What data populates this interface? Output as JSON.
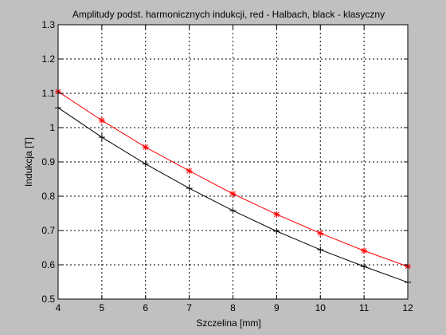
{
  "chart_data": {
    "type": "line",
    "title": "Amplitudy podst. harmonicznych indukcji, red - Halbach, black - klasyczny",
    "xlabel": "Szczelina [mm]",
    "ylabel": "Indukcja [T]",
    "xlim": [
      4,
      12
    ],
    "ylim": [
      0.5,
      1.3
    ],
    "xticks": [
      "4",
      "5",
      "6",
      "7",
      "8",
      "9",
      "10",
      "11",
      "12"
    ],
    "yticks": [
      "0.5",
      "0.6",
      "0.7",
      "0.8",
      "0.9",
      "1",
      "1.1",
      "1.2",
      "1.3"
    ],
    "grid": true,
    "x": [
      4,
      5,
      6,
      7,
      8,
      9,
      10,
      11,
      12
    ],
    "series": [
      {
        "color": "#ff0000",
        "marker": "star",
        "values": [
          1.105,
          1.021,
          0.943,
          0.874,
          0.807,
          0.747,
          0.692,
          0.641,
          0.595
        ]
      },
      {
        "color": "#000000",
        "marker": "plus",
        "values": [
          1.058,
          0.972,
          0.894,
          0.823,
          0.758,
          0.698,
          0.644,
          0.595,
          0.549
        ]
      }
    ]
  }
}
